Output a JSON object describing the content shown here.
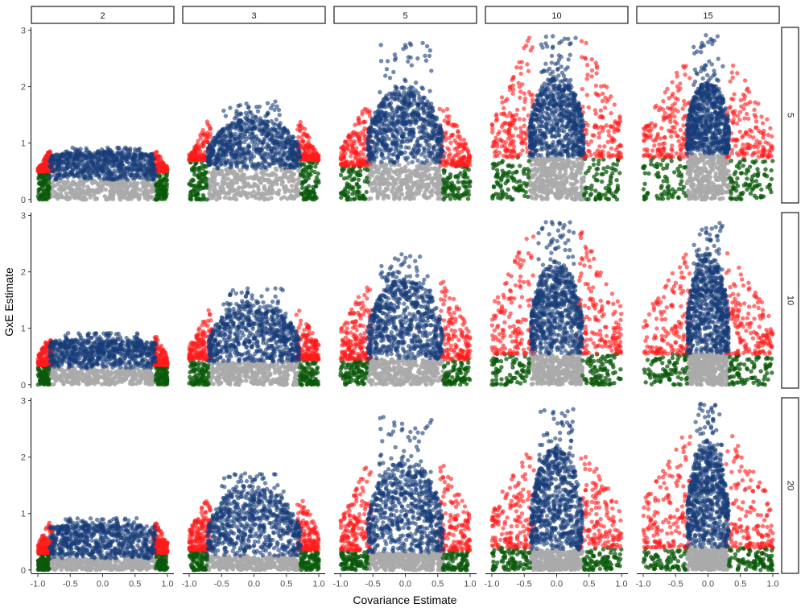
{
  "chart_data": {
    "type": "scatter",
    "title": "",
    "xlabel": "Covariance Estimate",
    "ylabel": "GxE Estimate",
    "xlim": [
      -1.0,
      1.0
    ],
    "ylim": [
      0,
      3
    ],
    "x_ticks": [
      "-1.0",
      "-0.5",
      "0.0",
      "0.5",
      "1.0"
    ],
    "y_ticks": [
      "0",
      "1",
      "2",
      "3"
    ],
    "grid": false,
    "legend": "none",
    "column_facets": [
      "2",
      "3",
      "5",
      "10",
      "15"
    ],
    "row_facets": [
      "5",
      "10",
      "20"
    ],
    "colors": {
      "gray": "#aaaaaa",
      "green": "#0b5a0b",
      "red": "#ff1a1a",
      "blue": "#173c78"
    },
    "panels": [
      {
        "row": "5",
        "col": "2",
        "gray_top": 0.35,
        "blue_top": 0.88,
        "red_top": 0.9,
        "max": 0.92,
        "blue_xmax": 0.82,
        "green_top": 0.5,
        "inner_shape": "flat"
      },
      {
        "row": "5",
        "col": "3",
        "gray_top": 0.55,
        "blue_top": 1.45,
        "red_top": 1.4,
        "max": 1.75,
        "blue_xmax": 0.72,
        "green_top": 0.7,
        "inner_shape": "arch"
      },
      {
        "row": "5",
        "col": "5",
        "gray_top": 0.65,
        "blue_top": 2.0,
        "red_top": 1.75,
        "max": 2.78,
        "blue_xmax": 0.58,
        "green_top": 0.6,
        "inner_shape": "arch"
      },
      {
        "row": "5",
        "col": "10",
        "gray_top": 0.75,
        "blue_top": 2.2,
        "red_top": 2.9,
        "max": 2.93,
        "blue_xmax": 0.42,
        "green_top": 0.75,
        "inner_shape": "arch"
      },
      {
        "row": "5",
        "col": "15",
        "gray_top": 0.8,
        "blue_top": 2.1,
        "red_top": 2.6,
        "max": 2.93,
        "blue_xmax": 0.33,
        "green_top": 0.75,
        "inner_shape": "arch"
      },
      {
        "row": "10",
        "col": "2",
        "gray_top": 0.3,
        "blue_top": 0.85,
        "red_top": 0.88,
        "max": 0.92,
        "blue_xmax": 0.82,
        "green_top": 0.35,
        "inner_shape": "flat"
      },
      {
        "row": "10",
        "col": "3",
        "gray_top": 0.4,
        "blue_top": 1.45,
        "red_top": 1.35,
        "max": 1.72,
        "blue_xmax": 0.7,
        "green_top": 0.45,
        "inner_shape": "arch"
      },
      {
        "row": "10",
        "col": "5",
        "gray_top": 0.45,
        "blue_top": 1.9,
        "red_top": 1.9,
        "max": 2.32,
        "blue_xmax": 0.58,
        "green_top": 0.45,
        "inner_shape": "arch"
      },
      {
        "row": "10",
        "col": "10",
        "gray_top": 0.55,
        "blue_top": 2.2,
        "red_top": 2.8,
        "max": 2.95,
        "blue_xmax": 0.4,
        "green_top": 0.55,
        "inner_shape": "arch"
      },
      {
        "row": "10",
        "col": "15",
        "gray_top": 0.55,
        "blue_top": 2.3,
        "red_top": 2.4,
        "max": 2.87,
        "blue_xmax": 0.32,
        "green_top": 0.55,
        "inner_shape": "arch"
      },
      {
        "row": "20",
        "col": "2",
        "gray_top": 0.2,
        "blue_top": 0.85,
        "red_top": 0.85,
        "max": 0.92,
        "blue_xmax": 0.82,
        "green_top": 0.3,
        "inner_shape": "flat"
      },
      {
        "row": "20",
        "col": "3",
        "gray_top": 0.25,
        "blue_top": 1.5,
        "red_top": 1.3,
        "max": 1.72,
        "blue_xmax": 0.72,
        "green_top": 0.35,
        "inner_shape": "arch"
      },
      {
        "row": "20",
        "col": "5",
        "gray_top": 0.3,
        "blue_top": 1.95,
        "red_top": 1.9,
        "max": 2.72,
        "blue_xmax": 0.58,
        "green_top": 0.35,
        "inner_shape": "arch"
      },
      {
        "row": "20",
        "col": "10",
        "gray_top": 0.35,
        "blue_top": 2.2,
        "red_top": 2.2,
        "max": 2.88,
        "blue_xmax": 0.4,
        "green_top": 0.4,
        "inner_shape": "arch"
      },
      {
        "row": "20",
        "col": "15",
        "gray_top": 0.4,
        "blue_top": 2.3,
        "red_top": 2.5,
        "max": 2.95,
        "blue_xmax": 0.32,
        "green_top": 0.4,
        "inner_shape": "arch"
      }
    ]
  }
}
